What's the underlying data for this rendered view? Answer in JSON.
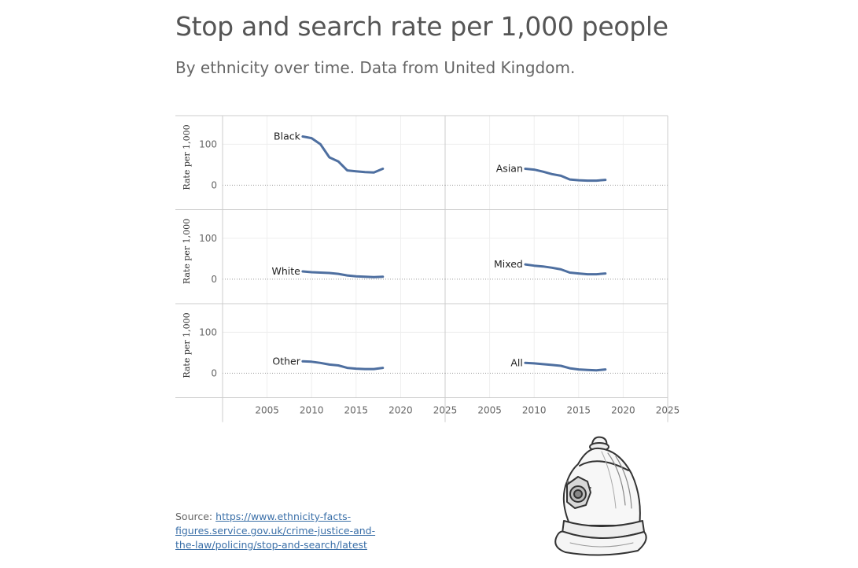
{
  "title": "Stop and search rate per 1,000 people",
  "subtitle": "By ethnicity over time. Data from United Kingdom.",
  "source": {
    "label": "Source:",
    "link_text": "https://www.ethnicity-facts-figures.service.gov.uk/crime-justice-and-the-law/policing/stop-and-search/latest"
  },
  "colors": {
    "line": "#4e6fa0",
    "grid": "#eeeeee",
    "zero": "#999999",
    "panel_border": "#cccccc"
  },
  "icons": {
    "helmet": "police-helmet-illustration"
  },
  "chart_data": {
    "type": "line",
    "layout": "small-multiples",
    "ylabel": "Rate per 1,000",
    "xticks": [
      2005,
      2010,
      2015,
      2020,
      2025
    ],
    "yticks": [
      0,
      100
    ],
    "xlim": [
      2000,
      2025
    ],
    "ylim": [
      -60,
      170
    ],
    "grid": true,
    "x": [
      2009,
      2010,
      2011,
      2012,
      2013,
      2014,
      2015,
      2016,
      2017,
      2018
    ],
    "series": [
      {
        "name": "Black",
        "values": [
          119,
          115,
          100,
          68,
          58,
          36,
          34,
          32,
          31,
          40
        ]
      },
      {
        "name": "Asian",
        "values": [
          40,
          38,
          33,
          27,
          23,
          14,
          12,
          11,
          11,
          13
        ]
      },
      {
        "name": "White",
        "values": [
          19,
          17,
          16,
          15,
          13,
          9,
          7,
          6,
          5,
          6
        ]
      },
      {
        "name": "Mixed",
        "values": [
          36,
          33,
          31,
          28,
          24,
          16,
          14,
          12,
          12,
          14
        ]
      },
      {
        "name": "Other",
        "values": [
          29,
          28,
          25,
          21,
          19,
          13,
          11,
          10,
          10,
          13
        ]
      },
      {
        "name": "All",
        "values": [
          25,
          24,
          22,
          20,
          18,
          12,
          9,
          8,
          7,
          9
        ]
      }
    ]
  }
}
